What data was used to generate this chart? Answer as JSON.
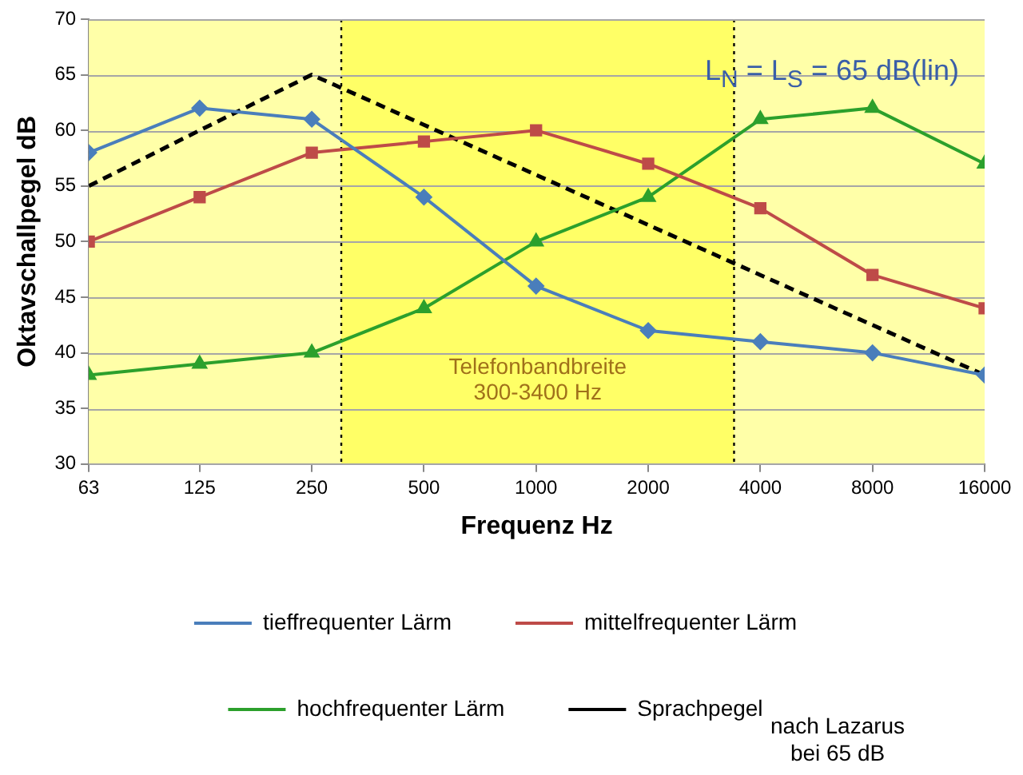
{
  "chart_data": {
    "type": "line",
    "xlabel": "Frequenz Hz",
    "ylabel": "Oktavschallpegel dB",
    "x": [
      63,
      125,
      250,
      500,
      1000,
      2000,
      4000,
      8000,
      16000
    ],
    "log": "x",
    "xlim": [
      63,
      16000
    ],
    "xticks": [
      63,
      125,
      250,
      500,
      1000,
      2000,
      4000,
      8000,
      16000
    ],
    "ylim": [
      30,
      70
    ],
    "yticks": [
      30,
      35,
      40,
      45,
      50,
      55,
      60,
      65,
      70
    ],
    "grid": "y",
    "legend": "bottom",
    "series": [
      {
        "name": "tieffrequenter Lärm",
        "color": "#4a7ebb",
        "marker": "diamond",
        "values": [
          58,
          62,
          61,
          54,
          46,
          42,
          41,
          40,
          38
        ]
      },
      {
        "name": "mittelfrequenter Lärm",
        "color": "#be4b48",
        "marker": "square",
        "values": [
          50,
          54,
          58,
          59,
          60,
          57,
          53,
          47,
          44
        ]
      },
      {
        "name": "hochfrequenter Lärm",
        "color": "#2ca02c",
        "marker": "triangle",
        "values": [
          38,
          39,
          40,
          44,
          50,
          54,
          61,
          62,
          57
        ]
      },
      {
        "name": "Sprachpegel",
        "color": "#000000",
        "marker": "none",
        "line_style": "dashed",
        "values": [
          55,
          60,
          65,
          60.5,
          56,
          51.5,
          47,
          42.5,
          38
        ]
      }
    ],
    "ref_lines": [
      {
        "axis": "x",
        "value": 300,
        "line_style": "dotted",
        "color": "#000000"
      },
      {
        "axis": "x",
        "value": 3400,
        "line_style": "dotted",
        "color": "#000000"
      }
    ],
    "bands": [
      {
        "axis": "x",
        "from": 300,
        "to": 3400,
        "label": "Telefonbandbreite\n300-3400 Hz",
        "color": "#ffff66"
      }
    ],
    "annotations": [
      "L$_{N}$ = L$_{S}$ = 65 dB(lin)",
      "nach Lazarus\nbei 65 dB"
    ]
  }
}
